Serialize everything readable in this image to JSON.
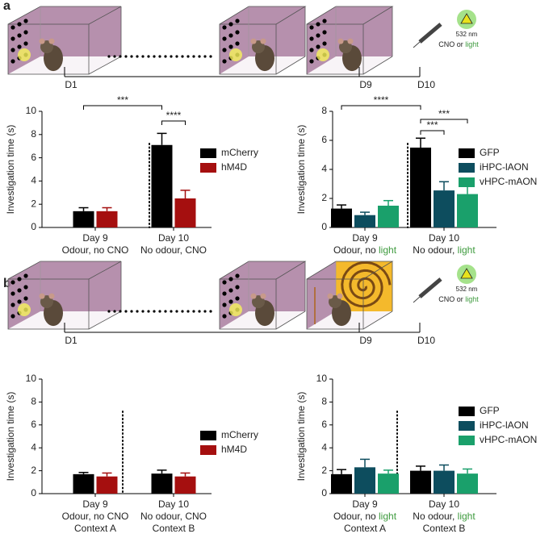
{
  "panel_labels": [
    "a",
    "b"
  ],
  "highlight_color": "#3d9a3d",
  "timelines": [
    {
      "days": [
        "D1",
        "D9",
        "D10"
      ]
    },
    {
      "days": [
        "D1",
        "D9",
        "D10"
      ]
    }
  ],
  "treatment": [
    {
      "wavelength": "532 nm",
      "label": [
        "CNO or ",
        "light"
      ]
    },
    {
      "wavelength": "532 nm",
      "label": [
        "CNO or ",
        "light"
      ]
    }
  ],
  "chart_data": [
    {
      "type": "bar",
      "y_label": "Investigation time (s)",
      "categories": [
        [
          "Day 9",
          "Odour, no CNO"
        ],
        [
          "Day 10",
          "No odour, CNO"
        ]
      ],
      "series": [
        {
          "name": "mCherry",
          "color": "#000000",
          "values": [
            1.4,
            7.1
          ],
          "error": [
            0.3,
            1.0
          ]
        },
        {
          "name": "hM4D",
          "color": "#a50f0f",
          "values": [
            1.4,
            2.5
          ],
          "error": [
            0.3,
            0.7
          ]
        }
      ],
      "ylim": [
        0,
        10
      ],
      "yticks": [
        0,
        2,
        4,
        6,
        8,
        10
      ],
      "annotations": [
        "***",
        "****"
      ]
    },
    {
      "type": "bar",
      "y_label": "Investigation time (s)",
      "categories": [
        [
          "Day 9",
          [
            "Odour, no ",
            "light"
          ]
        ],
        [
          "Day 10",
          [
            "No odour, ",
            "light"
          ]
        ]
      ],
      "series": [
        {
          "name": "GFP",
          "color": "#000000",
          "values": [
            1.3,
            5.5
          ],
          "error": [
            0.25,
            0.65
          ]
        },
        {
          "name": "iHPC-lAON",
          "color": "#0d4d5e",
          "values": [
            0.85,
            2.55
          ],
          "error": [
            0.2,
            0.6
          ]
        },
        {
          "name": "vHPC-mAON",
          "color": "#1aa06b",
          "values": [
            1.5,
            2.3
          ],
          "error": [
            0.35,
            0.6
          ]
        }
      ],
      "ylim": [
        0,
        8
      ],
      "yticks": [
        0,
        2,
        4,
        6,
        8
      ],
      "annotations": [
        "****",
        "***",
        "***"
      ]
    },
    {
      "type": "bar",
      "y_label": "Investigation time (s)",
      "categories": [
        [
          "Day 9",
          "Odour, no CNO",
          "Context A"
        ],
        [
          "Day 10",
          "No odour, CNO",
          "Context B"
        ]
      ],
      "series": [
        {
          "name": "mCherry",
          "color": "#000000",
          "values": [
            1.7,
            1.75
          ],
          "error": [
            0.15,
            0.3
          ]
        },
        {
          "name": "hM4D",
          "color": "#a50f0f",
          "values": [
            1.5,
            1.5
          ],
          "error": [
            0.3,
            0.3
          ]
        }
      ],
      "ylim": [
        0,
        10
      ],
      "yticks": [
        0,
        2,
        4,
        6,
        8,
        10
      ]
    },
    {
      "type": "bar",
      "y_label": "Investigation time (s)",
      "categories": [
        [
          "Day 9",
          [
            "Odour, no ",
            "light"
          ],
          "Context A"
        ],
        [
          "Day 10",
          [
            "No odour, ",
            "light"
          ],
          "Context B"
        ]
      ],
      "series": [
        {
          "name": "GFP",
          "color": "#000000",
          "values": [
            1.7,
            2.0
          ],
          "error": [
            0.4,
            0.4
          ]
        },
        {
          "name": "iHPC-lAON",
          "color": "#0d4d5e",
          "values": [
            2.3,
            2.0
          ],
          "error": [
            0.7,
            0.5
          ]
        },
        {
          "name": "vHPC-mAON",
          "color": "#1aa06b",
          "values": [
            1.75,
            1.75
          ],
          "error": [
            0.3,
            0.4
          ]
        }
      ],
      "ylim": [
        0,
        10
      ],
      "yticks": [
        0,
        2,
        4,
        6,
        8,
        10
      ]
    }
  ]
}
